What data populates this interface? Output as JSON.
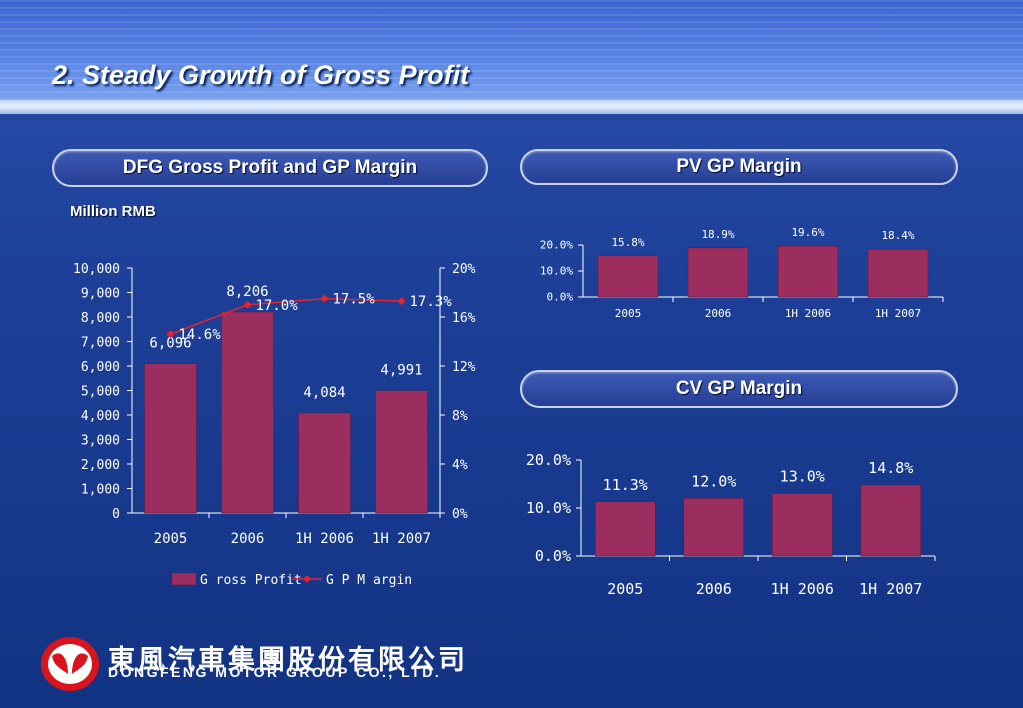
{
  "page": {
    "title": "2. Steady Growth of Gross Profit"
  },
  "panels": {
    "main_title": "DFG Gross Profit and GP Margin",
    "pv_title": "PV GP Margin",
    "cv_title": "CV GP Margin",
    "unit": "Million RMB"
  },
  "logo": {
    "name_cn": "東風汽車集團股份有限公司",
    "name_en": "DONGFENG MOTOR GROUP CO., LTD."
  },
  "colors": {
    "bar": "#9b2d5f",
    "line": "#e6242b",
    "text": "#ffffff"
  },
  "chart_data": [
    {
      "type": "bar",
      "categories": [
        "2005",
        "2006",
        "1H 2006",
        "1H 2007"
      ],
      "series": [
        {
          "name": "G ross Profit",
          "values": [
            6096,
            8206,
            4084,
            4991
          ],
          "labels": [
            "6,096",
            "8,206",
            "4,084",
            "4,991"
          ]
        },
        {
          "name": "G P M argin",
          "type": "line",
          "axis": "right",
          "values": [
            14.6,
            17.0,
            17.5,
            17.3
          ],
          "labels": [
            "14.6%",
            "17.0%",
            "17.5%",
            "17.3%"
          ]
        }
      ],
      "yticks": [
        "0",
        "1,000",
        "2,000",
        "3,000",
        "4,000",
        "5,000",
        "6,000",
        "7,000",
        "8,000",
        "9,000",
        "10,000"
      ],
      "ylim": [
        0,
        10000
      ],
      "y2ticks": [
        "0%",
        "4%",
        "8%",
        "12%",
        "16%",
        "20%"
      ],
      "y2lim": [
        0,
        20
      ],
      "legend": "bottom"
    },
    {
      "type": "bar",
      "categories": [
        "2005",
        "2006",
        "1H 2006",
        "1H 2007"
      ],
      "values": [
        15.8,
        18.9,
        19.6,
        18.4
      ],
      "labels": [
        "15.8%",
        "18.9%",
        "19.6%",
        "18.4%"
      ],
      "yticks": [
        "0.0%",
        "10.0%",
        "20.0%"
      ],
      "ylim": [
        0,
        20
      ]
    },
    {
      "type": "bar",
      "categories": [
        "2005",
        "2006",
        "1H 2006",
        "1H 2007"
      ],
      "values": [
        11.3,
        12.0,
        13.0,
        14.8
      ],
      "labels": [
        "11.3%",
        "12.0%",
        "13.0%",
        "14.8%"
      ],
      "yticks": [
        "0.0%",
        "10.0%",
        "20.0%"
      ],
      "ylim": [
        0,
        20
      ]
    }
  ]
}
